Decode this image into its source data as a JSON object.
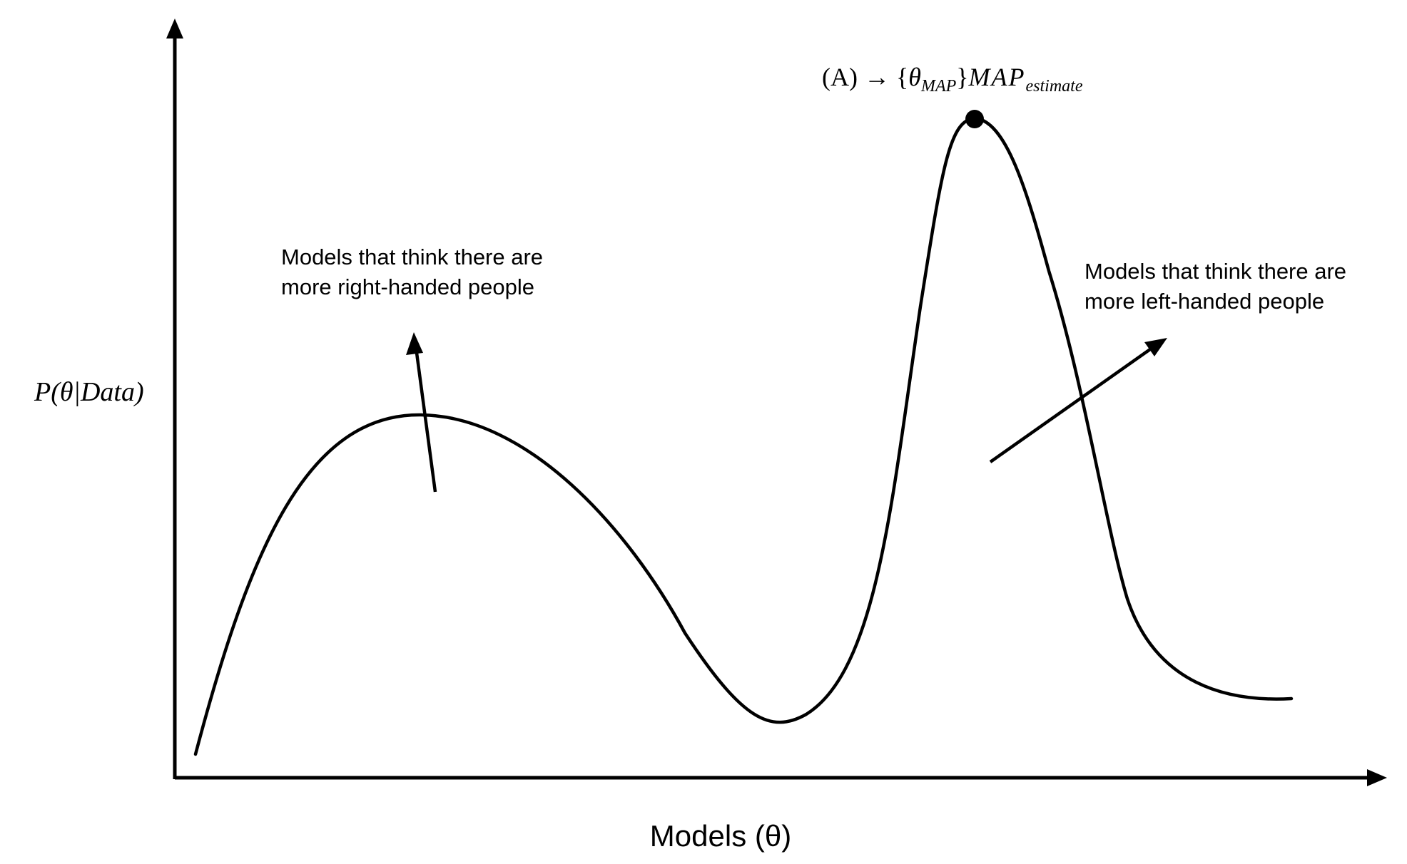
{
  "y_axis_label": "P(θ|Data)",
  "x_axis_label": "Models (θ)",
  "peak_label": {
    "prefix": "(A) → {",
    "theta": "θ",
    "theta_subscript": "MAP",
    "close": "}",
    "main": "MAP",
    "main_subscript": "estimate"
  },
  "left_note": {
    "line1": "Models that think there are",
    "line2": "more right-handed people"
  },
  "right_note": {
    "line1": "Models that think there are",
    "line2": "more left-handed people"
  },
  "colors": {
    "ink": "#000000",
    "background": "#ffffff"
  }
}
